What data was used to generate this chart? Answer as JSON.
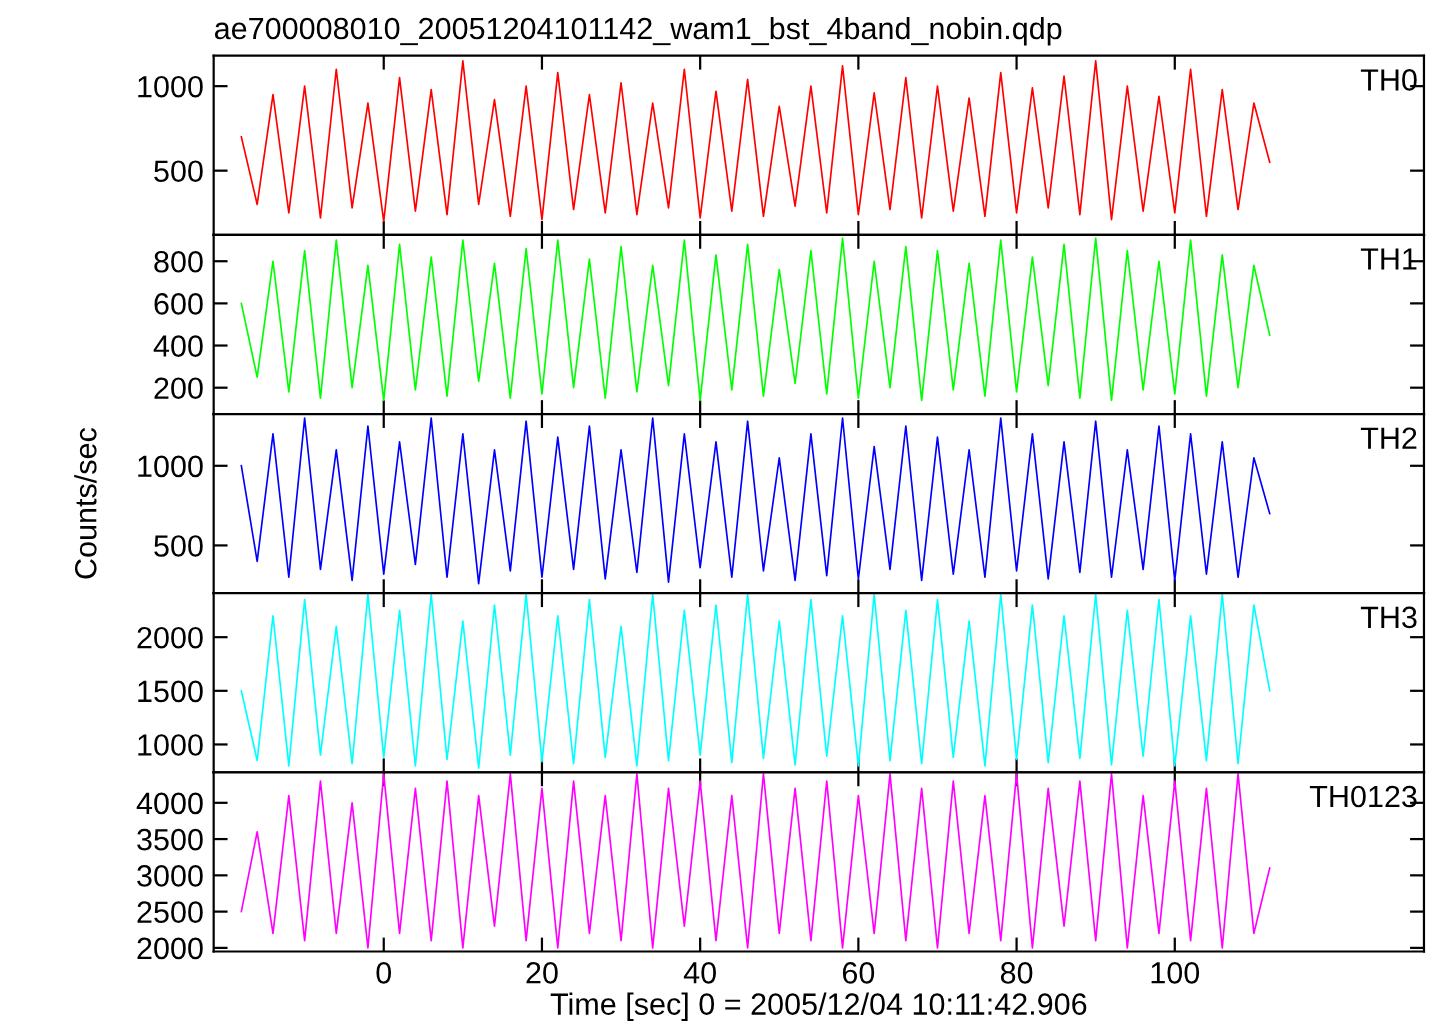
{
  "chart_data": [
    {
      "type": "line",
      "title": "ae700008010_20051204101142_wam1_bst_4band_nobin.qdp",
      "xlim": [
        -21.5,
        131.5
      ],
      "ylim": [
        120,
        1180
      ],
      "yticks": [
        500,
        1000
      ],
      "xticks": [
        0,
        20,
        40,
        60,
        80,
        100
      ],
      "tick_labels": "y",
      "x": [
        -18,
        -16,
        -14,
        -12,
        -10,
        -8,
        -6,
        -4,
        -2,
        0,
        2,
        4,
        6,
        8,
        10,
        12,
        14,
        16,
        18,
        20,
        22,
        24,
        26,
        28,
        30,
        32,
        34,
        36,
        38,
        40,
        42,
        44,
        46,
        48,
        50,
        52,
        54,
        56,
        58,
        60,
        62,
        64,
        66,
        68,
        70,
        72,
        74,
        76,
        78,
        80,
        82,
        84,
        86,
        88,
        90,
        92,
        94,
        96,
        98,
        100,
        102,
        104,
        106,
        108,
        110,
        112
      ],
      "series": [
        {
          "name": "TH0",
          "color": "#ff0000",
          "values": [
            700,
            300,
            950,
            250,
            1000,
            220,
            1100,
            280,
            900,
            200,
            1050,
            260,
            980,
            240,
            1150,
            300,
            920,
            230,
            1000,
            210,
            1080,
            270,
            950,
            250,
            1020,
            240,
            900,
            280,
            1100,
            220,
            970,
            260,
            1040,
            230,
            880,
            290,
            1000,
            250,
            1120,
            240,
            960,
            270,
            1050,
            220,
            1000,
            260,
            930,
            230,
            1080,
            250,
            990,
            280,
            1060,
            240,
            1150,
            210,
            1000,
            260,
            940,
            250,
            1100,
            230,
            980,
            270,
            900,
            550
          ]
        }
      ]
    },
    {
      "type": "line",
      "xlim": [
        -21.5,
        131.5
      ],
      "ylim": [
        75,
        925
      ],
      "yticks": [
        200,
        400,
        600,
        800
      ],
      "xticks": [
        0,
        20,
        40,
        60,
        80,
        100
      ],
      "tick_labels": "y",
      "x": [
        -18,
        -16,
        -14,
        -12,
        -10,
        -8,
        -6,
        -4,
        -2,
        0,
        2,
        4,
        6,
        8,
        10,
        12,
        14,
        16,
        18,
        20,
        22,
        24,
        26,
        28,
        30,
        32,
        34,
        36,
        38,
        40,
        42,
        44,
        46,
        48,
        50,
        52,
        54,
        56,
        58,
        60,
        62,
        64,
        66,
        68,
        70,
        72,
        74,
        76,
        78,
        80,
        82,
        84,
        86,
        88,
        90,
        92,
        94,
        96,
        98,
        100,
        102,
        104,
        106,
        108,
        110,
        112
      ],
      "series": [
        {
          "name": "TH1",
          "color": "#00ff00",
          "values": [
            600,
            250,
            800,
            180,
            850,
            150,
            900,
            200,
            780,
            140,
            880,
            190,
            820,
            160,
            900,
            230,
            790,
            150,
            860,
            170,
            900,
            200,
            810,
            150,
            870,
            180,
            780,
            210,
            900,
            140,
            830,
            190,
            880,
            160,
            760,
            220,
            850,
            170,
            910,
            150,
            800,
            200,
            870,
            140,
            850,
            190,
            790,
            160,
            900,
            180,
            820,
            210,
            880,
            150,
            910,
            140,
            850,
            190,
            800,
            170,
            900,
            160,
            830,
            200,
            780,
            450
          ]
        }
      ]
    },
    {
      "type": "line",
      "ylabel": "Counts/sec",
      "xlim": [
        -21.5,
        131.5
      ],
      "ylim": [
        200,
        1325
      ],
      "yticks": [
        500,
        1000
      ],
      "xticks": [
        0,
        20,
        40,
        60,
        80,
        100
      ],
      "tick_labels": "y",
      "x": [
        -18,
        -16,
        -14,
        -12,
        -10,
        -8,
        -6,
        -4,
        -2,
        0,
        2,
        4,
        6,
        8,
        10,
        12,
        14,
        16,
        18,
        20,
        22,
        24,
        26,
        28,
        30,
        32,
        34,
        36,
        38,
        40,
        42,
        44,
        46,
        48,
        50,
        52,
        54,
        56,
        58,
        60,
        62,
        64,
        66,
        68,
        70,
        72,
        74,
        76,
        78,
        80,
        82,
        84,
        86,
        88,
        90,
        92,
        94,
        96,
        98,
        100,
        102,
        104,
        106,
        108,
        110,
        112
      ],
      "series": [
        {
          "name": "TH2",
          "color": "#0000ff",
          "values": [
            1000,
            400,
            1200,
            300,
            1300,
            350,
            1100,
            280,
            1250,
            320,
            1150,
            380,
            1300,
            300,
            1200,
            260,
            1100,
            340,
            1280,
            300,
            1180,
            350,
            1250,
            290,
            1100,
            330,
            1300,
            270,
            1200,
            360,
            1150,
            300,
            1280,
            340,
            1050,
            280,
            1200,
            310,
            1300,
            290,
            1120,
            350,
            1250,
            280,
            1180,
            320,
            1100,
            300,
            1300,
            340,
            1200,
            290,
            1150,
            330,
            1280,
            300,
            1100,
            350,
            1250,
            280,
            1200,
            320,
            1150,
            300,
            1050,
            700
          ]
        }
      ]
    },
    {
      "type": "line",
      "xlim": [
        -21.5,
        131.5
      ],
      "ylim": [
        740,
        2410
      ],
      "yticks": [
        1000,
        1500,
        2000
      ],
      "xticks": [
        0,
        20,
        40,
        60,
        80,
        100
      ],
      "tick_labels": "y",
      "x": [
        -18,
        -16,
        -14,
        -12,
        -10,
        -8,
        -6,
        -4,
        -2,
        0,
        2,
        4,
        6,
        8,
        10,
        12,
        14,
        16,
        18,
        20,
        22,
        24,
        26,
        28,
        30,
        32,
        34,
        36,
        38,
        40,
        42,
        44,
        46,
        48,
        50,
        52,
        54,
        56,
        58,
        60,
        62,
        64,
        66,
        68,
        70,
        72,
        74,
        76,
        78,
        80,
        82,
        84,
        86,
        88,
        90,
        92,
        94,
        96,
        98,
        100,
        102,
        104,
        106,
        108,
        110,
        112
      ],
      "series": [
        {
          "name": "TH3",
          "color": "#00ffff",
          "values": [
            1500,
            850,
            2200,
            800,
            2350,
            900,
            2100,
            820,
            2400,
            880,
            2250,
            800,
            2400,
            860,
            2150,
            780,
            2300,
            900,
            2400,
            840,
            2200,
            820,
            2350,
            880,
            2100,
            800,
            2400,
            850,
            2250,
            900,
            2300,
            830,
            2400,
            870,
            2150,
            810,
            2350,
            890,
            2200,
            800,
            2400,
            850,
            2250,
            820,
            2350,
            880,
            2150,
            800,
            2400,
            860,
            2300,
            830,
            2200,
            870,
            2400,
            810,
            2250,
            890,
            2350,
            800,
            2200,
            850,
            2400,
            820,
            2300,
            1500
          ]
        }
      ]
    },
    {
      "type": "line",
      "xlabel": "Time [sec] 0 = 2005/12/04 10:11:42.906",
      "xlim": [
        -21.5,
        131.5
      ],
      "ylim": [
        1950,
        4420
      ],
      "yticks": [
        2000,
        2500,
        3000,
        3500,
        4000
      ],
      "xticks": [
        0,
        20,
        40,
        60,
        80,
        100
      ],
      "x": [
        -18,
        -16,
        -14,
        -12,
        -10,
        -8,
        -6,
        -4,
        -2,
        0,
        2,
        4,
        6,
        8,
        10,
        12,
        14,
        16,
        18,
        20,
        22,
        24,
        26,
        28,
        30,
        32,
        34,
        36,
        38,
        40,
        42,
        44,
        46,
        48,
        50,
        52,
        54,
        56,
        58,
        60,
        62,
        64,
        66,
        68,
        70,
        72,
        74,
        76,
        78,
        80,
        82,
        84,
        86,
        88,
        90,
        92,
        94,
        96,
        98,
        100,
        102,
        104,
        106,
        108,
        110,
        112
      ],
      "series": [
        {
          "name": "TH0123",
          "color": "#ff00ff",
          "values": [
            2500,
            3600,
            2200,
            4100,
            2100,
            4300,
            2200,
            4000,
            2000,
            4400,
            2200,
            4200,
            2100,
            4300,
            2000,
            4100,
            2300,
            4400,
            2100,
            4200,
            2000,
            4300,
            2200,
            4100,
            2100,
            4400,
            2000,
            4200,
            2300,
            4300,
            2100,
            4100,
            2000,
            4400,
            2200,
            4200,
            2100,
            4300,
            2000,
            4100,
            2200,
            4400,
            2100,
            4200,
            2000,
            4300,
            2200,
            4100,
            2100,
            4400,
            2000,
            4200,
            2300,
            4300,
            2100,
            4400,
            2000,
            4100,
            2200,
            4300,
            2100,
            4200,
            2000,
            4400,
            2200,
            3100
          ]
        }
      ]
    }
  ]
}
